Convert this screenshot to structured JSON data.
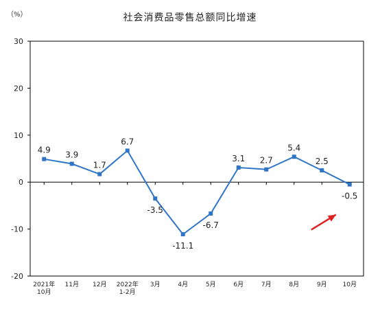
{
  "unit_label": "（%）",
  "chart_data": {
    "type": "line",
    "title": "社会消费品零售总额同比增速",
    "xlabel": "",
    "ylabel": "（%）",
    "ylim": [
      -20,
      30
    ],
    "yticks": [
      -20,
      -10,
      0,
      10,
      20,
      30
    ],
    "grid": false,
    "categories": [
      [
        "2021年",
        "10月"
      ],
      [
        "11月"
      ],
      [
        "12月"
      ],
      [
        "2022年",
        "1-2月"
      ],
      [
        "3月"
      ],
      [
        "4月"
      ],
      [
        "5月"
      ],
      [
        "6月"
      ],
      [
        "7月"
      ],
      [
        "8月"
      ],
      [
        "9月"
      ],
      [
        "10月"
      ]
    ],
    "series": [
      {
        "values": [
          4.9,
          3.9,
          1.7,
          6.7,
          -3.5,
          -11.1,
          -6.7,
          3.1,
          2.7,
          5.4,
          2.5,
          -0.5
        ],
        "labels": [
          "4.9",
          "3.9",
          "1.7",
          "6.7",
          "-3.5",
          "-11.1",
          "-6.7",
          "3.1",
          "2.7",
          "5.4",
          "2.5",
          "-0.5"
        ],
        "color": "#2e75c8"
      }
    ],
    "annotation": {
      "type": "arrow",
      "target_index": 11,
      "color": "#e02020"
    }
  }
}
